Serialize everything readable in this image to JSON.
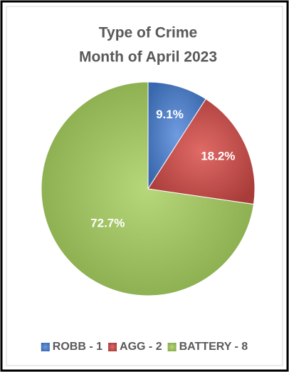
{
  "chart_data": {
    "type": "pie",
    "title": "Type of Crime",
    "subtitle": "Month of April 2023",
    "categories": [
      "ROBB - 1",
      "AGG - 2",
      "BATTERY - 8"
    ],
    "values": [
      9.1,
      18.2,
      72.7
    ],
    "value_labels": [
      "9.1%",
      "18.2%",
      "72.7%"
    ],
    "colors": [
      "#4a7ebb",
      "#c0504d",
      "#9bbb59"
    ],
    "legend": "bottom"
  }
}
